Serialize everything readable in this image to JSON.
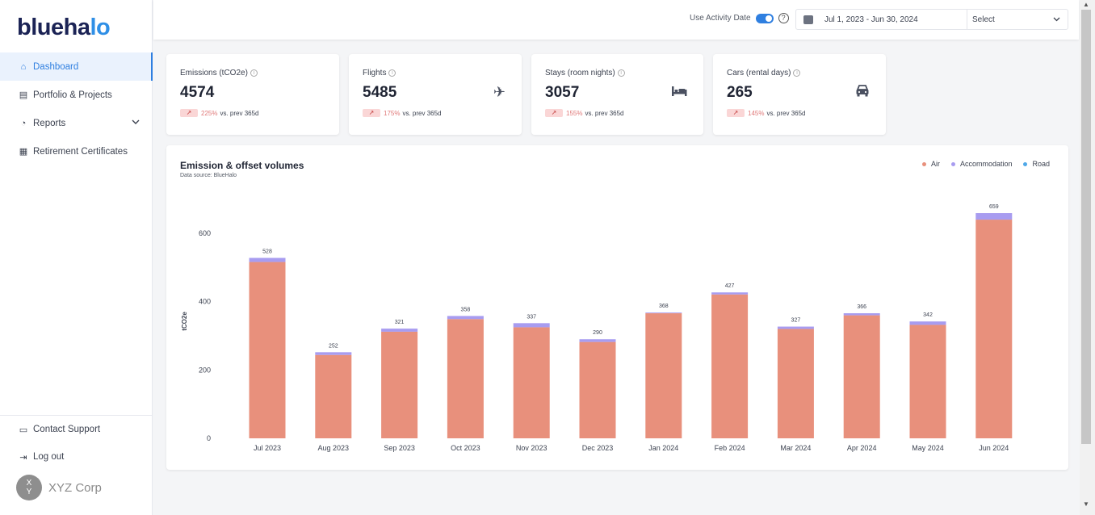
{
  "brand": {
    "logo_text": "blueha",
    "logo_tail": "lo"
  },
  "sidebar": {
    "items": [
      {
        "label": "Dashboard",
        "icon": "home-icon"
      },
      {
        "label": "Portfolio & Projects",
        "icon": "portfolio-icon"
      },
      {
        "label": "Reports",
        "icon": "reports-icon"
      },
      {
        "label": "Retirement Certificates",
        "icon": "certificate-icon"
      }
    ],
    "bottom": [
      {
        "label": "Contact Support",
        "icon": "chat-icon"
      },
      {
        "label": "Log out",
        "icon": "logout-icon"
      }
    ],
    "org": {
      "initials_top": "X",
      "initials_bottom": "Y",
      "name": "XYZ Corp"
    }
  },
  "topbar": {
    "toggle_label": "Use Activity Date",
    "toggle_on": true,
    "date_range": "Jul 1, 2023 - Jun 30, 2024",
    "select_label": "Select"
  },
  "cards": [
    {
      "title": "Emissions (tCO2e)",
      "value": "4574",
      "pct": "225%",
      "vs": "vs. prev 365d",
      "icon": ""
    },
    {
      "title": "Flights",
      "value": "5485",
      "pct": "175%",
      "vs": "vs. prev 365d",
      "icon": "airplane-icon"
    },
    {
      "title": "Stays (room nights)",
      "value": "3057",
      "pct": "155%",
      "vs": "vs. prev 365d",
      "icon": "bed-icon"
    },
    {
      "title": "Cars (rental days)",
      "value": "265",
      "pct": "145%",
      "vs": "vs. prev 365d",
      "icon": "car-icon"
    }
  ],
  "chart_panel": {
    "title": "Emission & offset volumes",
    "subtitle": "Data source: BlueHalo"
  },
  "colors": {
    "air": "#e8907c",
    "accommodation": "#a89cf0",
    "road": "#4fa8e8",
    "accent": "#2f7fe0"
  },
  "chart_data": {
    "type": "bar",
    "stacked": true,
    "categories": [
      "Jul 2023",
      "Aug 2023",
      "Sep 2023",
      "Oct 2023",
      "Nov 2023",
      "Dec 2023",
      "Jan 2024",
      "Feb 2024",
      "Mar 2024",
      "Apr 2024",
      "May 2024",
      "Jun 2024"
    ],
    "series": [
      {
        "name": "Air",
        "values": [
          516,
          244,
          312,
          349,
          325,
          282,
          366,
          421,
          320,
          360,
          332,
          640
        ]
      },
      {
        "name": "Accommodation",
        "values": [
          12,
          8,
          9,
          9,
          12,
          8,
          2,
          6,
          7,
          6,
          10,
          19
        ]
      },
      {
        "name": "Road",
        "values": [
          0,
          0,
          0,
          0,
          0,
          0,
          0,
          0,
          0,
          0,
          0,
          0
        ]
      }
    ],
    "totals": [
      528,
      252,
      321,
      358,
      337,
      290,
      368,
      427,
      327,
      366,
      342,
      659
    ],
    "ylabel": "tCO2e",
    "yticks": [
      0,
      200,
      400,
      600
    ],
    "ylim": [
      0,
      700
    ],
    "legend_position": "top-right",
    "grid": false
  }
}
